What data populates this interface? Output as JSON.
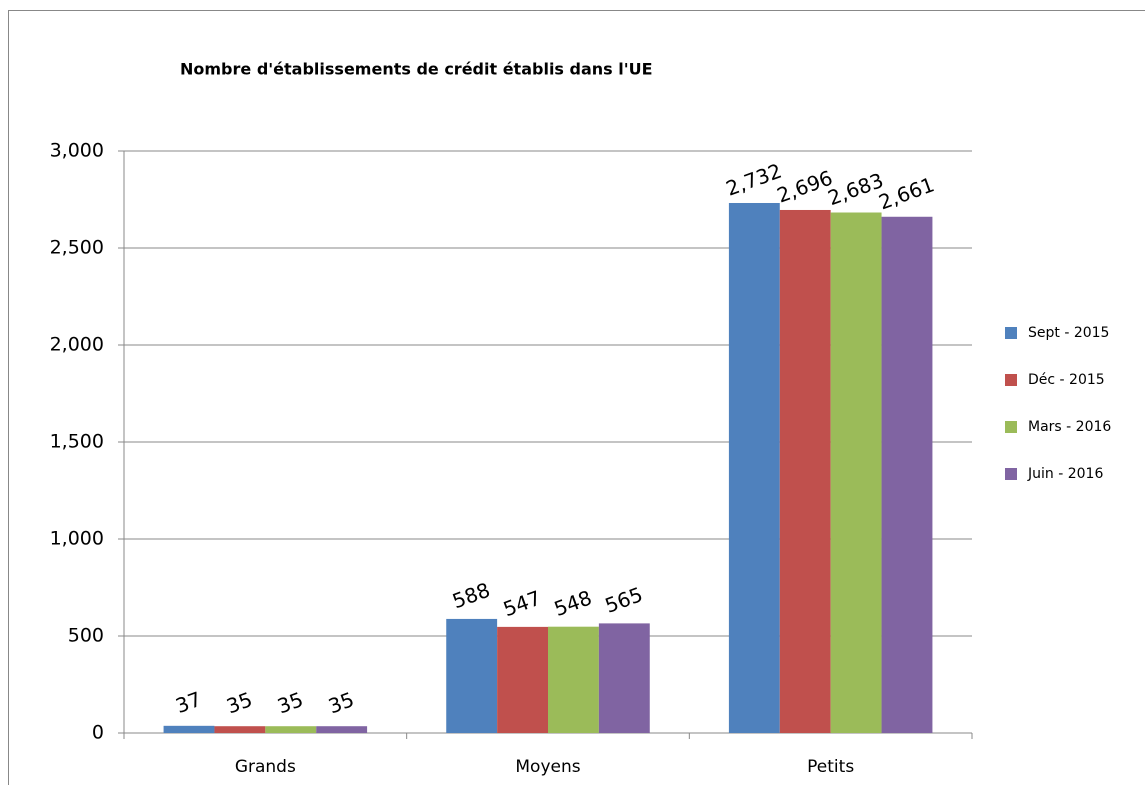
{
  "chart_data": {
    "type": "bar",
    "title": "Nombre d'établissements de crédit établis dans l'UE",
    "categories": [
      "Grands",
      "Moyens",
      "Petits"
    ],
    "series": [
      {
        "name": "Sept - 2015",
        "color": "#4f81bd",
        "values": [
          37,
          588,
          2732
        ],
        "value_labels": [
          "37",
          "588",
          "2,732"
        ]
      },
      {
        "name": "Déc - 2015",
        "color": "#c0504d",
        "values": [
          35,
          547,
          2696
        ],
        "value_labels": [
          "35",
          "547",
          "2,696"
        ]
      },
      {
        "name": "Mars - 2016",
        "color": "#9bbb59",
        "values": [
          35,
          548,
          2683
        ],
        "value_labels": [
          "35",
          "548",
          "2,683"
        ]
      },
      {
        "name": "Juin - 2016",
        "color": "#8064a2",
        "values": [
          35,
          565,
          2661
        ],
        "value_labels": [
          "35",
          "565",
          "2,661"
        ]
      }
    ],
    "ylim": [
      0,
      3000
    ],
    "yticks": [
      0,
      500,
      {
        "value": 1000,
        "label": "1,000"
      },
      {
        "value": 1500,
        "label": "1,500"
      },
      {
        "value": 2000,
        "label": "2,000"
      },
      {
        "value": 2500,
        "label": "2,500"
      },
      {
        "value": 3000,
        "label": "3,000"
      }
    ],
    "grid": true,
    "legend": "right"
  }
}
